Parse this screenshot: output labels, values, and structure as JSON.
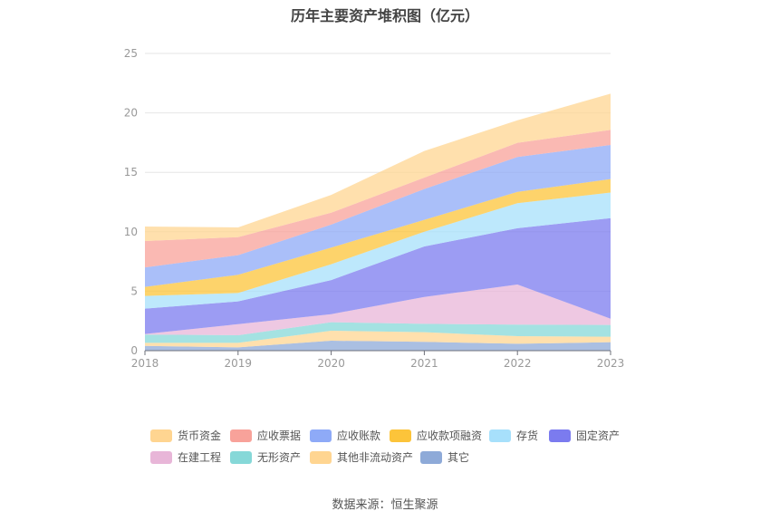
{
  "chart_data": {
    "type": "area",
    "stacked": true,
    "title": "历年主要资产堆积图（亿元）",
    "x": [
      "2018",
      "2019",
      "2020",
      "2021",
      "2022",
      "2023"
    ],
    "ylim": [
      0,
      25
    ],
    "yticks": [
      0,
      5,
      10,
      15,
      20,
      25
    ],
    "grid": true,
    "legend_position": "bottom",
    "series": [
      {
        "name": "货币资金",
        "color": "#ffd591",
        "values": [
          1.22,
          0.82,
          1.5,
          2.24,
          1.9,
          3.05
        ]
      },
      {
        "name": "应收票据",
        "color": "#f8a29a",
        "values": [
          2.22,
          1.52,
          1.0,
          0.96,
          1.19,
          1.27
        ]
      },
      {
        "name": "应收账款",
        "color": "#8eaaf7",
        "values": [
          1.64,
          1.65,
          1.93,
          2.6,
          2.93,
          2.87
        ]
      },
      {
        "name": "应收款项融资",
        "color": "#fcc43a",
        "values": [
          0.76,
          1.53,
          1.4,
          1.0,
          0.96,
          1.13
        ]
      },
      {
        "name": "存货",
        "color": "#a7e0fb",
        "values": [
          1.07,
          0.71,
          1.33,
          1.23,
          2.1,
          2.15
        ]
      },
      {
        "name": "固定资产",
        "color": "#7b7bef",
        "values": [
          2.13,
          1.91,
          2.87,
          4.25,
          4.74,
          8.46
        ]
      },
      {
        "name": "在建工程",
        "color": "#e8b6d8",
        "values": [
          0.05,
          0.93,
          0.68,
          2.26,
          3.37,
          0.53
        ]
      },
      {
        "name": "无形资产",
        "color": "#86d8d8",
        "values": [
          0.69,
          0.64,
          0.71,
          0.71,
          0.97,
          0.99
        ]
      },
      {
        "name": "其他非流动资产",
        "color": "#ffd591",
        "values": [
          0.26,
          0.38,
          0.84,
          0.81,
          0.64,
          0.46
        ]
      },
      {
        "name": "其它",
        "color": "#8eaad8",
        "values": [
          0.4,
          0.28,
          0.84,
          0.74,
          0.58,
          0.71
        ]
      }
    ]
  },
  "source": "数据来源：恒生聚源"
}
